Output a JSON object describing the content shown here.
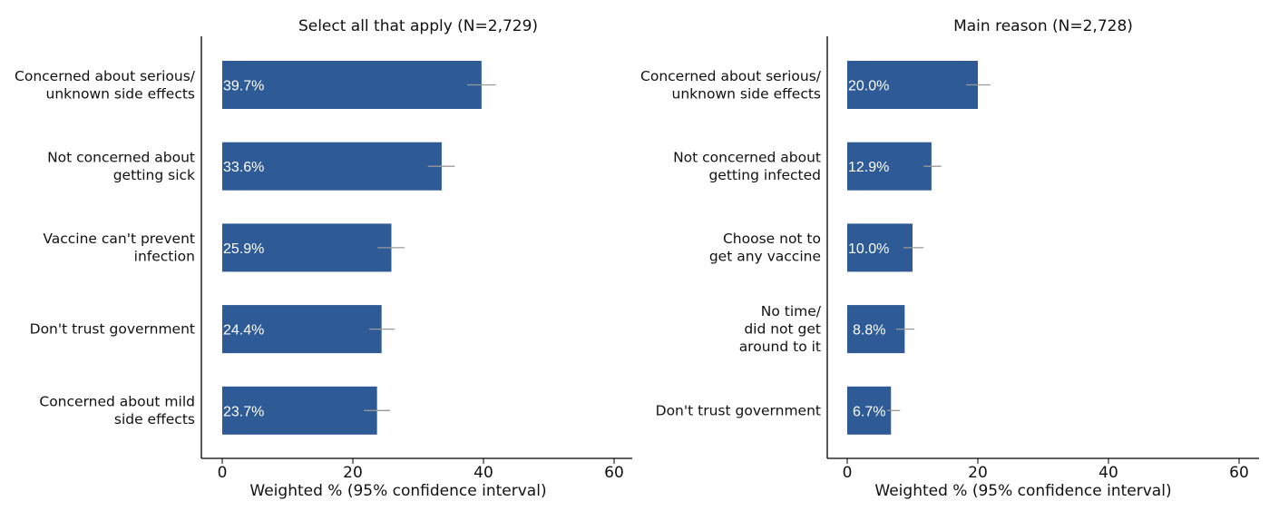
{
  "chart_data": [
    {
      "type": "bar",
      "orientation": "horizontal",
      "title": "Select all that apply (N=2,729)",
      "xlabel": "Weighted % (95% confidence interval)",
      "ylabel": "",
      "xlim": [
        0,
        60
      ],
      "xticks": [
        "0",
        "20",
        "40",
        "60"
      ],
      "grid": false,
      "bar_color": "#2e5a96",
      "errorbar_color": "#999999",
      "categories": [
        [
          "Concerned about serious/",
          "unknown side effects"
        ],
        [
          "Not concerned about",
          "getting sick"
        ],
        [
          "Vaccine can't prevent",
          "infection"
        ],
        [
          "Don't trust government"
        ],
        [
          "Concerned about mild",
          "side effects"
        ]
      ],
      "values": [
        39.7,
        33.6,
        25.9,
        24.4,
        23.7
      ],
      "data_labels": [
        "39.7%",
        "33.6%",
        "25.9%",
        "24.4%",
        "23.7%"
      ],
      "ci": [
        [
          37.5,
          41.9
        ],
        [
          31.5,
          35.6
        ],
        [
          23.8,
          27.9
        ],
        [
          22.5,
          26.4
        ],
        [
          21.7,
          25.7
        ]
      ]
    },
    {
      "type": "bar",
      "orientation": "horizontal",
      "title": "Main reason (N=2,728)",
      "xlabel": "Weighted % (95% confidence interval)",
      "ylabel": "",
      "xlim": [
        0,
        60
      ],
      "xticks": [
        "0",
        "20",
        "40",
        "60"
      ],
      "grid": false,
      "bar_color": "#2e5a96",
      "errorbar_color": "#999999",
      "categories": [
        [
          "Concerned about serious/",
          "unknown side effects"
        ],
        [
          "Not concerned about",
          "getting infected"
        ],
        [
          "Choose not to",
          "get any vaccine"
        ],
        [
          "No time/",
          "did not get",
          "around to it"
        ],
        [
          "Don't trust government"
        ]
      ],
      "values": [
        20.0,
        12.9,
        10.0,
        8.8,
        6.7
      ],
      "data_labels": [
        "20.0%",
        "12.9%",
        "10.0%",
        "8.8%",
        "6.7%"
      ],
      "ci": [
        [
          18.2,
          21.9
        ],
        [
          11.7,
          14.4
        ],
        [
          8.6,
          11.7
        ],
        [
          7.5,
          10.3
        ],
        [
          6.1,
          8.1
        ]
      ]
    }
  ]
}
